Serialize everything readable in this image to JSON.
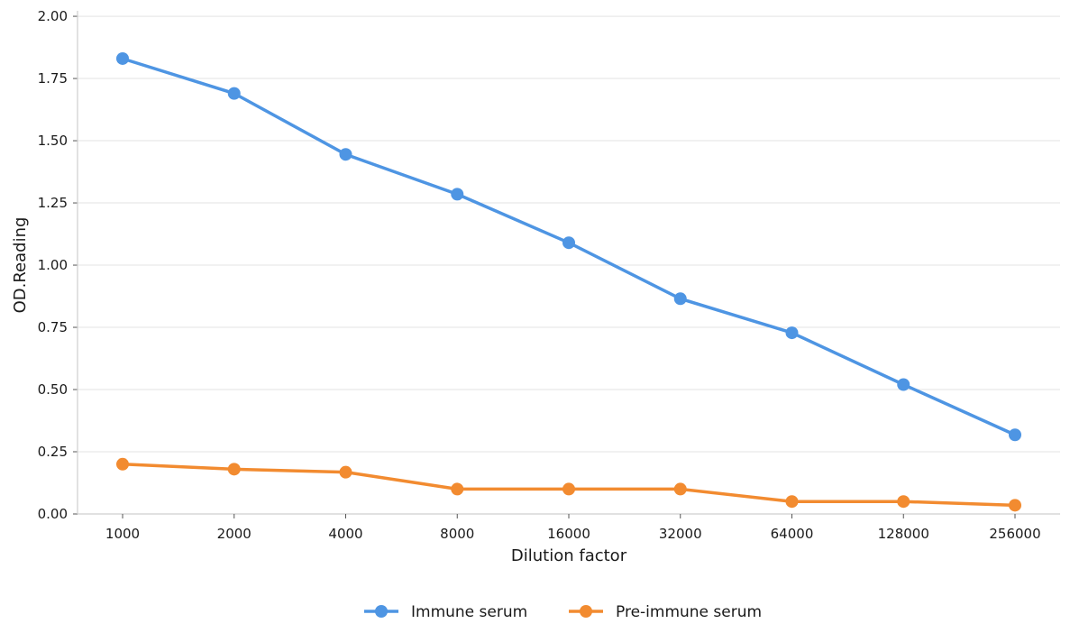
{
  "chart_data": {
    "type": "line",
    "title": "",
    "xlabel": "Dilution factor",
    "ylabel": "OD.Reading",
    "categories": [
      "1000",
      "2000",
      "4000",
      "8000",
      "16000",
      "32000",
      "64000",
      "128000",
      "256000"
    ],
    "ylim": [
      0,
      2.0
    ],
    "yticks": [
      "0.00",
      "0.25",
      "0.50",
      "0.75",
      "1.00",
      "1.25",
      "1.50",
      "1.75",
      "2.00"
    ],
    "grid": "horizontal",
    "legend_position": "bottom-center",
    "series": [
      {
        "name": "Immune serum",
        "color": "#4e95e3",
        "values": [
          1.83,
          1.69,
          1.445,
          1.285,
          1.09,
          0.865,
          0.728,
          0.52,
          0.318
        ]
      },
      {
        "name": "Pre-immune serum",
        "color": "#f28b30",
        "values": [
          0.2,
          0.18,
          0.168,
          0.1,
          0.1,
          0.1,
          0.05,
          0.05,
          0.035
        ]
      }
    ]
  }
}
